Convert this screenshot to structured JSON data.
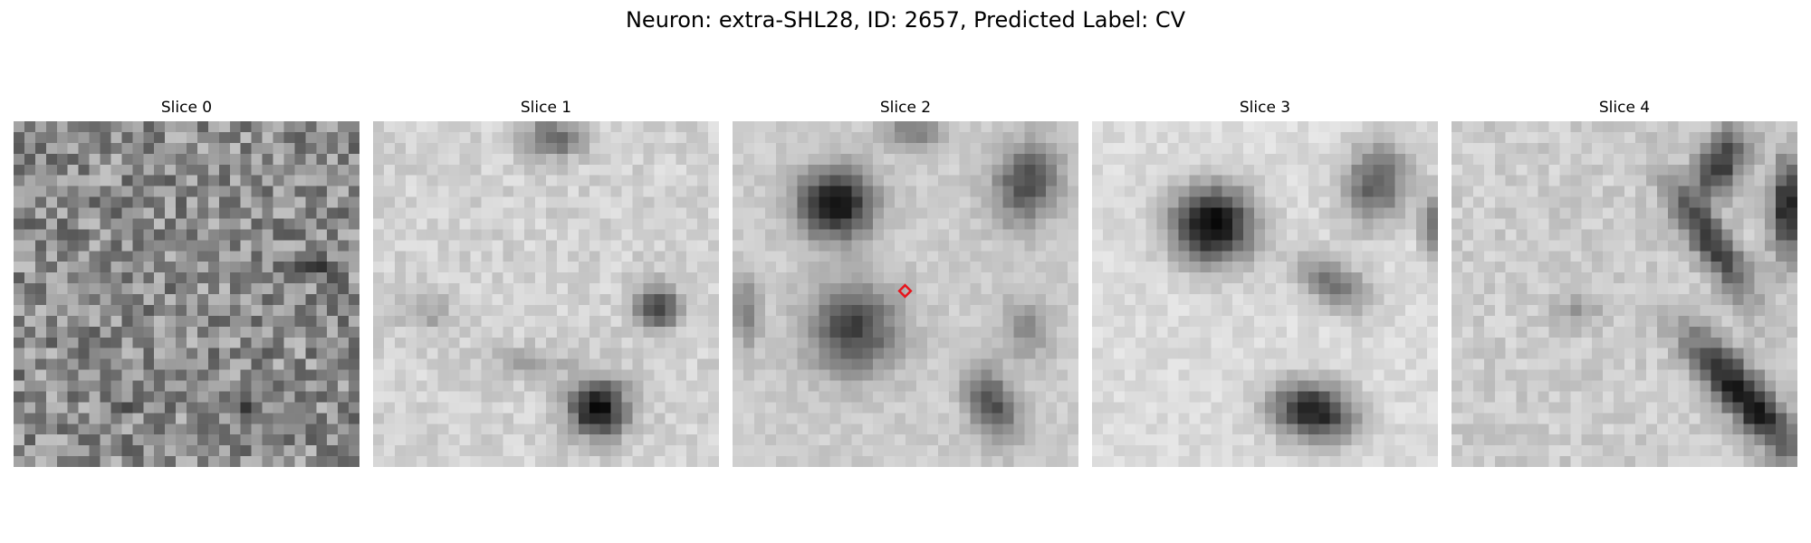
{
  "figure": {
    "title": "Neuron: extra-SHL28, ID: 2657, Predicted Label: CV"
  },
  "colors": {
    "marker": "#e8141c",
    "colormap": "grayscale"
  },
  "panels": [
    {
      "title": "Slice 0",
      "has_marker": false
    },
    {
      "title": "Slice 1",
      "has_marker": false
    },
    {
      "title": "Slice 2",
      "has_marker": true
    },
    {
      "title": "Slice 3",
      "has_marker": false
    },
    {
      "title": "Slice 4",
      "has_marker": false
    }
  ]
}
